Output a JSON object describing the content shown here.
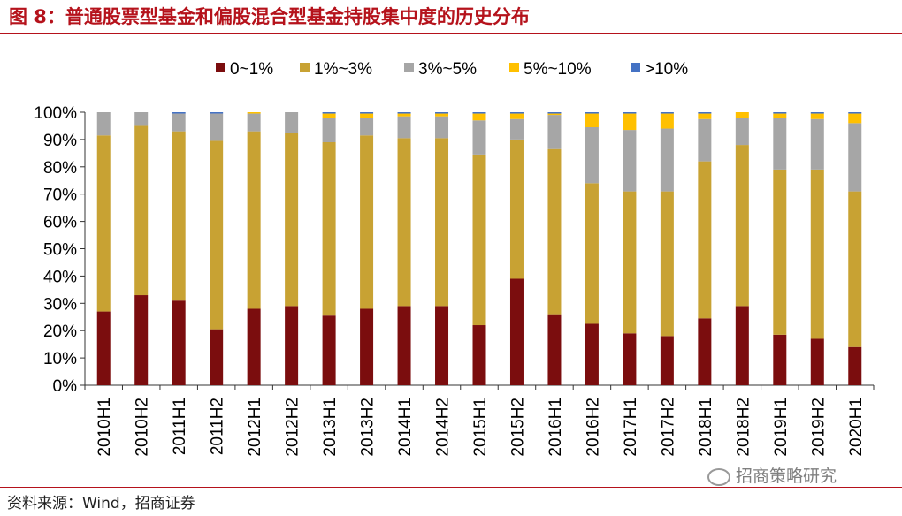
{
  "header": {
    "title": "图 8：普通股票型基金和偏股混合型基金持股集中度的历史分布"
  },
  "footer": {
    "source": "资料来源：Wind，招商证券",
    "watermark": "招商策略研究"
  },
  "colors": [
    "#7b0d0e",
    "#c8a233",
    "#a6a6a6",
    "#ffc000",
    "#4472c4"
  ],
  "chart_data": {
    "type": "bar",
    "stacked": true,
    "title": "",
    "xlabel": "",
    "ylabel": "",
    "ylim": [
      0,
      100
    ],
    "yticks": [
      "0%",
      "10%",
      "20%",
      "30%",
      "40%",
      "50%",
      "60%",
      "70%",
      "80%",
      "90%",
      "100%"
    ],
    "legend_position": "top",
    "categories": [
      "2010H1",
      "2010H2",
      "2011H1",
      "2011H2",
      "2012H1",
      "2012H2",
      "2013H1",
      "2013H2",
      "2014H1",
      "2014H2",
      "2015H1",
      "2015H2",
      "2016H1",
      "2016H2",
      "2017H1",
      "2017H2",
      "2018H1",
      "2018H2",
      "2019H1",
      "2019H2",
      "2020H1"
    ],
    "series": [
      {
        "name": "0~1%",
        "values": [
          27,
          33,
          31,
          20.5,
          28,
          29,
          25.5,
          28,
          29,
          29,
          22,
          39,
          26,
          22.5,
          19,
          18,
          24.5,
          29,
          18.5,
          17,
          14
        ]
      },
      {
        "name": "1%~3%",
        "values": [
          64.5,
          62,
          62,
          69,
          65,
          63.5,
          63.5,
          63.5,
          61.5,
          61.5,
          62.5,
          51,
          60.5,
          51.5,
          52,
          53,
          57.5,
          59,
          60.5,
          62,
          57
        ]
      },
      {
        "name": "3%~5%",
        "values": [
          8.5,
          5,
          6.5,
          10,
          6.5,
          7.5,
          9,
          6.5,
          8,
          8,
          12.5,
          7.5,
          12.5,
          20.5,
          22.5,
          23,
          15.5,
          10,
          19,
          18.5,
          25
        ]
      },
      {
        "name": "5%~10%",
        "values": [
          0,
          0,
          0,
          0,
          0.5,
          0,
          1.5,
          1.5,
          1,
          1,
          2.5,
          2,
          0.5,
          5,
          6,
          5.5,
          2,
          2,
          1.5,
          2,
          3.5
        ]
      },
      {
        "name": ">10%",
        "values": [
          0,
          0,
          0.5,
          0.5,
          0,
          0,
          0.5,
          0.5,
          0.5,
          0.5,
          0.5,
          0.5,
          0.5,
          0.5,
          0.5,
          0.5,
          0.5,
          0,
          0.5,
          0.5,
          0.5
        ]
      }
    ]
  }
}
